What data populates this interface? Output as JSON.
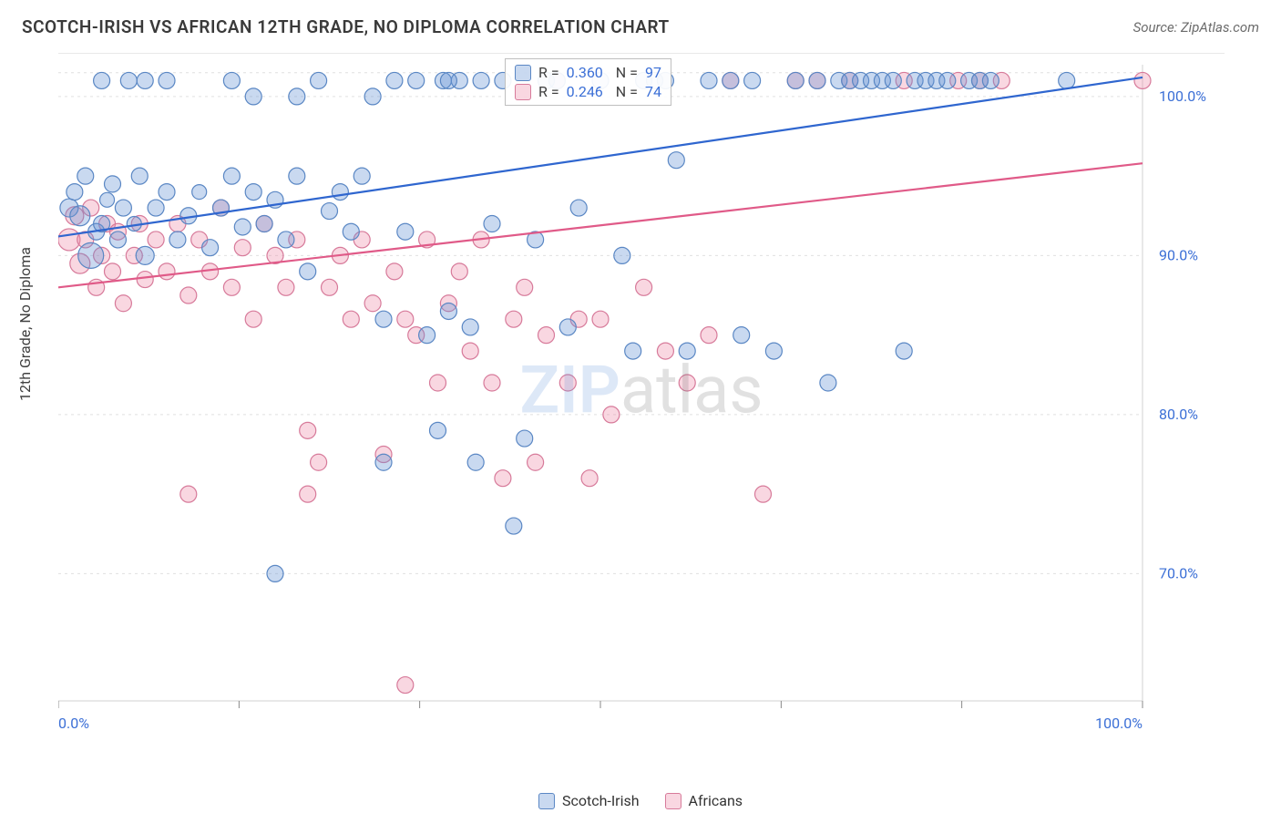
{
  "header": {
    "title": "SCOTCH-IRISH VS AFRICAN 12TH GRADE, NO DIPLOMA CORRELATION CHART",
    "source": "Source: ZipAtlas.com"
  },
  "ylabel": "12th Grade, No Diploma",
  "watermark": {
    "a": "ZIP",
    "b": "atlas"
  },
  "chart": {
    "type": "scatter",
    "xlim": [
      0,
      100
    ],
    "ylim": [
      62,
      102
    ],
    "xticks": [
      0,
      16.67,
      33.33,
      50,
      66.67,
      83.33,
      100
    ],
    "xtick_labels": [
      "0.0%",
      "",
      "",
      "",
      "",
      "",
      "100.0%"
    ],
    "yticks": [
      70,
      80,
      90,
      100
    ],
    "ytick_labels": [
      "70.0%",
      "80.0%",
      "90.0%",
      "100.0%"
    ],
    "grid_color": "#e0e0e0",
    "axis_color": "#d0d0d0",
    "tick_color": "#8a8a8a",
    "label_color": "#3b6fd6",
    "label_fontsize": 16,
    "background_color": "#ffffff",
    "series": [
      {
        "name": "Scotch-Irish",
        "fill": "rgba(99,145,213,0.35)",
        "stroke": "#5a87c4",
        "line_color": "#2f66cf",
        "line_width": 2.2,
        "R": "0.360",
        "N": "97",
        "trend": {
          "x1": 0,
          "y1": 91.2,
          "x2": 100,
          "y2": 101.2
        },
        "points": [
          [
            1,
            93,
            10
          ],
          [
            1.5,
            94,
            9
          ],
          [
            2,
            92.5,
            11
          ],
          [
            2.5,
            95,
            9
          ],
          [
            3,
            90,
            14
          ],
          [
            3.5,
            91.5,
            9
          ],
          [
            4,
            92,
            9
          ],
          [
            4.5,
            93.5,
            8
          ],
          [
            5,
            94.5,
            9
          ],
          [
            5.5,
            91,
            9
          ],
          [
            6,
            93,
            9
          ],
          [
            7,
            92,
            8
          ],
          [
            7.5,
            95,
            9
          ],
          [
            8,
            90,
            10
          ],
          [
            9,
            93,
            9
          ],
          [
            10,
            94,
            9
          ],
          [
            11,
            91,
            9
          ],
          [
            12,
            92.5,
            9
          ],
          [
            13,
            94,
            8
          ],
          [
            14,
            90.5,
            9
          ],
          [
            15,
            93,
            9
          ],
          [
            16,
            95,
            9
          ],
          [
            17,
            91.8,
            9
          ],
          [
            18,
            94,
            9
          ],
          [
            19,
            92,
            9
          ],
          [
            20,
            93.5,
            9
          ],
          [
            21,
            91,
            9
          ],
          [
            22,
            100,
            9
          ],
          [
            23,
            89,
            9
          ],
          [
            24,
            101,
            9
          ],
          [
            25,
            92.8,
            9
          ],
          [
            26,
            94,
            9
          ],
          [
            27,
            91.5,
            9
          ],
          [
            28,
            95,
            9
          ],
          [
            29,
            100,
            9
          ],
          [
            30,
            86,
            9
          ],
          [
            31,
            101,
            9
          ],
          [
            32,
            91.5,
            9
          ],
          [
            33,
            101,
            9
          ],
          [
            34,
            85,
            9
          ],
          [
            35,
            79,
            9
          ],
          [
            35.5,
            101,
            9
          ],
          [
            36,
            86.5,
            9
          ],
          [
            37,
            101,
            9
          ],
          [
            38,
            85.5,
            9
          ],
          [
            39,
            101,
            9
          ],
          [
            40,
            92,
            9
          ],
          [
            41,
            101,
            9
          ],
          [
            42,
            73,
            9
          ],
          [
            43,
            78.5,
            9
          ],
          [
            44,
            91,
            9
          ],
          [
            45,
            101,
            9
          ],
          [
            46,
            101,
            9
          ],
          [
            47,
            85.5,
            9
          ],
          [
            48,
            93,
            9
          ],
          [
            50,
            101,
            9
          ],
          [
            52,
            90,
            9
          ],
          [
            53,
            84,
            9
          ],
          [
            54,
            101,
            9
          ],
          [
            55,
            101,
            9
          ],
          [
            56,
            101,
            9
          ],
          [
            57,
            96,
            9
          ],
          [
            58,
            84,
            9
          ],
          [
            60,
            101,
            9
          ],
          [
            62,
            101,
            9
          ],
          [
            63,
            85,
            9
          ],
          [
            64,
            101,
            9
          ],
          [
            66,
            84,
            9
          ],
          [
            68,
            101,
            9
          ],
          [
            70,
            101,
            9
          ],
          [
            71,
            82,
            9
          ],
          [
            72,
            101,
            9
          ],
          [
            73,
            101,
            9
          ],
          [
            74,
            101,
            9
          ],
          [
            75,
            101,
            9
          ],
          [
            76,
            101,
            9
          ],
          [
            77,
            101,
            9
          ],
          [
            78,
            84,
            9
          ],
          [
            79,
            101,
            9
          ],
          [
            80,
            101,
            9
          ],
          [
            81,
            101,
            9
          ],
          [
            82,
            101,
            9
          ],
          [
            84,
            101,
            9
          ],
          [
            85,
            101,
            9
          ],
          [
            86,
            101,
            9
          ],
          [
            93,
            101,
            9
          ],
          [
            16,
            101,
            9
          ],
          [
            18,
            100,
            9
          ],
          [
            36,
            101,
            9
          ],
          [
            30,
            77,
            9
          ],
          [
            38.5,
            77,
            9
          ],
          [
            20,
            70,
            9
          ],
          [
            4,
            101,
            9
          ],
          [
            6.5,
            101,
            9
          ],
          [
            8,
            101,
            9
          ],
          [
            10,
            101,
            9
          ],
          [
            22,
            95,
            9
          ]
        ]
      },
      {
        "name": "Africans",
        "fill": "rgba(238,140,170,0.35)",
        "stroke": "#d77a9a",
        "line_color": "#e05a88",
        "line_width": 2.2,
        "R": "0.246",
        "N": "74",
        "trend": {
          "x1": 0,
          "y1": 88.0,
          "x2": 100,
          "y2": 95.8
        },
        "points": [
          [
            1,
            91,
            12
          ],
          [
            1.5,
            92.5,
            10
          ],
          [
            2,
            89.5,
            11
          ],
          [
            2.5,
            91,
            9
          ],
          [
            3,
            93,
            9
          ],
          [
            3.5,
            88,
            9
          ],
          [
            4,
            90,
            9
          ],
          [
            4.5,
            92,
            9
          ],
          [
            5,
            89,
            9
          ],
          [
            5.5,
            91.5,
            9
          ],
          [
            6,
            87,
            9
          ],
          [
            7,
            90,
            9
          ],
          [
            7.5,
            92,
            9
          ],
          [
            8,
            88.5,
            9
          ],
          [
            9,
            91,
            9
          ],
          [
            10,
            89,
            9
          ],
          [
            11,
            92,
            9
          ],
          [
            12,
            87.5,
            9
          ],
          [
            13,
            91,
            9
          ],
          [
            14,
            89,
            9
          ],
          [
            15,
            93,
            9
          ],
          [
            16,
            88,
            9
          ],
          [
            17,
            90.5,
            9
          ],
          [
            18,
            86,
            9
          ],
          [
            19,
            92,
            9
          ],
          [
            20,
            90,
            9
          ],
          [
            21,
            88,
            9
          ],
          [
            22,
            91,
            9
          ],
          [
            23,
            79,
            9
          ],
          [
            24,
            77,
            9
          ],
          [
            25,
            88,
            9
          ],
          [
            26,
            90,
            9
          ],
          [
            27,
            86,
            9
          ],
          [
            28,
            91,
            9
          ],
          [
            29,
            87,
            9
          ],
          [
            30,
            77.5,
            9
          ],
          [
            31,
            89,
            9
          ],
          [
            32,
            86,
            9
          ],
          [
            33,
            85,
            9
          ],
          [
            34,
            91,
            9
          ],
          [
            35,
            82,
            9
          ],
          [
            36,
            87,
            9
          ],
          [
            37,
            89,
            9
          ],
          [
            38,
            84,
            9
          ],
          [
            39,
            91,
            9
          ],
          [
            40,
            82,
            9
          ],
          [
            41,
            76,
            9
          ],
          [
            42,
            86,
            9
          ],
          [
            43,
            88,
            9
          ],
          [
            44,
            77,
            9
          ],
          [
            45,
            85,
            9
          ],
          [
            46,
            101,
            9
          ],
          [
            47,
            82,
            9
          ],
          [
            48,
            86,
            9
          ],
          [
            49,
            76,
            9
          ],
          [
            50,
            86,
            9
          ],
          [
            51,
            80,
            9
          ],
          [
            54,
            88,
            9
          ],
          [
            56,
            84,
            9
          ],
          [
            58,
            82,
            9
          ],
          [
            60,
            85,
            9
          ],
          [
            62,
            101,
            9
          ],
          [
            65,
            75,
            9
          ],
          [
            68,
            101,
            9
          ],
          [
            70,
            101,
            9
          ],
          [
            73,
            101,
            9
          ],
          [
            78,
            101,
            9
          ],
          [
            83,
            101,
            9
          ],
          [
            85,
            101,
            9
          ],
          [
            87,
            101,
            9
          ],
          [
            32,
            63,
            9
          ],
          [
            100,
            101,
            9
          ],
          [
            12,
            75,
            9
          ],
          [
            23,
            75,
            9
          ]
        ]
      }
    ]
  },
  "legend_top": {
    "rows": [
      {
        "sw_fill": "rgba(99,145,213,0.35)",
        "sw_stroke": "#5a87c4",
        "r_label": "R =",
        "r_val": "0.360",
        "n_label": "N =",
        "n_val": "97"
      },
      {
        "sw_fill": "rgba(238,140,170,0.35)",
        "sw_stroke": "#d77a9a",
        "r_label": "R =",
        "r_val": "0.246",
        "n_label": "N =",
        "n_val": "74"
      }
    ]
  },
  "legend_bottom": {
    "items": [
      {
        "sw_fill": "rgba(99,145,213,0.35)",
        "sw_stroke": "#5a87c4",
        "label": "Scotch-Irish"
      },
      {
        "sw_fill": "rgba(238,140,170,0.35)",
        "sw_stroke": "#d77a9a",
        "label": "Africans"
      }
    ]
  }
}
